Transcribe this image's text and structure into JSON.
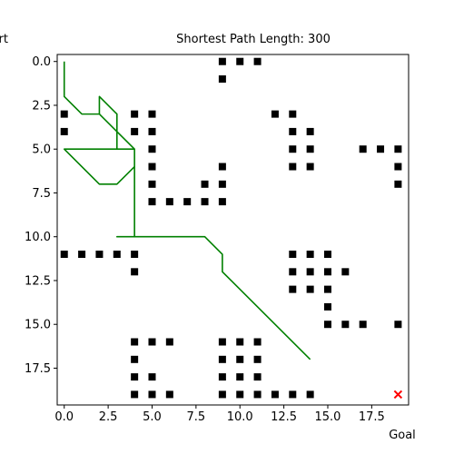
{
  "chart_data": {
    "type": "scatter",
    "title": "Shortest Path Length: 300",
    "start_label": "Start",
    "goal_label": "Goal",
    "xlim": [
      -0.4,
      19.6
    ],
    "ylim": [
      19.6,
      -0.4
    ],
    "x_ticks": [
      0.0,
      2.5,
      5.0,
      7.5,
      10.0,
      12.5,
      15.0,
      17.5
    ],
    "y_ticks": [
      0.0,
      2.5,
      5.0,
      7.5,
      10.0,
      12.5,
      15.0,
      17.5
    ],
    "x_tick_labels": [
      "0.0",
      "2.5",
      "5.0",
      "7.5",
      "10.0",
      "12.5",
      "15.0",
      "17.5"
    ],
    "y_tick_labels": [
      "0.0",
      "2.5",
      "5.0",
      "7.5",
      "10.0",
      "12.5",
      "15.0",
      "17.5"
    ],
    "obstacle_color": "#000000",
    "path_color": "#008000",
    "goal_color": "#ff0000",
    "obstacles": [
      [
        9,
        0
      ],
      [
        10,
        0
      ],
      [
        11,
        0
      ],
      [
        9,
        1
      ],
      [
        0,
        3
      ],
      [
        4,
        3
      ],
      [
        5,
        3
      ],
      [
        12,
        3
      ],
      [
        13,
        3
      ],
      [
        0,
        4
      ],
      [
        4,
        4
      ],
      [
        5,
        4
      ],
      [
        13,
        4
      ],
      [
        14,
        4
      ],
      [
        5,
        5
      ],
      [
        13,
        5
      ],
      [
        14,
        5
      ],
      [
        17,
        5
      ],
      [
        18,
        5
      ],
      [
        19,
        5
      ],
      [
        5,
        6
      ],
      [
        9,
        6
      ],
      [
        13,
        6
      ],
      [
        14,
        6
      ],
      [
        19,
        6
      ],
      [
        5,
        7
      ],
      [
        8,
        7
      ],
      [
        9,
        7
      ],
      [
        19,
        7
      ],
      [
        5,
        8
      ],
      [
        6,
        8
      ],
      [
        7,
        8
      ],
      [
        8,
        8
      ],
      [
        9,
        8
      ],
      [
        0,
        11
      ],
      [
        1,
        11
      ],
      [
        2,
        11
      ],
      [
        3,
        11
      ],
      [
        4,
        11
      ],
      [
        13,
        11
      ],
      [
        14,
        11
      ],
      [
        15,
        11
      ],
      [
        4,
        12
      ],
      [
        13,
        12
      ],
      [
        14,
        12
      ],
      [
        15,
        12
      ],
      [
        16,
        12
      ],
      [
        13,
        13
      ],
      [
        14,
        13
      ],
      [
        15,
        13
      ],
      [
        15,
        14
      ],
      [
        15,
        15
      ],
      [
        16,
        15
      ],
      [
        17,
        15
      ],
      [
        19,
        15
      ],
      [
        4,
        16
      ],
      [
        5,
        16
      ],
      [
        6,
        16
      ],
      [
        9,
        16
      ],
      [
        10,
        16
      ],
      [
        11,
        16
      ],
      [
        4,
        17
      ],
      [
        9,
        17
      ],
      [
        10,
        17
      ],
      [
        11,
        17
      ],
      [
        4,
        18
      ],
      [
        5,
        18
      ],
      [
        9,
        18
      ],
      [
        10,
        18
      ],
      [
        11,
        18
      ],
      [
        4,
        19
      ],
      [
        5,
        19
      ],
      [
        6,
        19
      ],
      [
        9,
        19
      ],
      [
        10,
        19
      ],
      [
        11,
        19
      ],
      [
        12,
        19
      ],
      [
        13,
        19
      ],
      [
        14,
        19
      ]
    ],
    "path": [
      [
        0,
        0
      ],
      [
        0,
        2
      ],
      [
        1,
        3
      ],
      [
        2,
        3
      ],
      [
        2,
        2
      ],
      [
        3,
        3
      ],
      [
        3,
        5
      ],
      [
        3,
        4
      ],
      [
        4,
        5
      ],
      [
        0,
        5
      ],
      [
        2,
        7
      ],
      [
        3,
        7
      ],
      [
        4,
        6
      ],
      [
        4,
        5
      ],
      [
        2,
        3
      ],
      [
        4,
        5
      ],
      [
        4,
        10
      ],
      [
        6,
        10
      ],
      [
        3,
        10
      ],
      [
        8,
        10
      ],
      [
        9,
        11
      ],
      [
        9,
        12
      ],
      [
        14,
        17
      ]
    ],
    "goal": [
      19,
      19
    ]
  }
}
